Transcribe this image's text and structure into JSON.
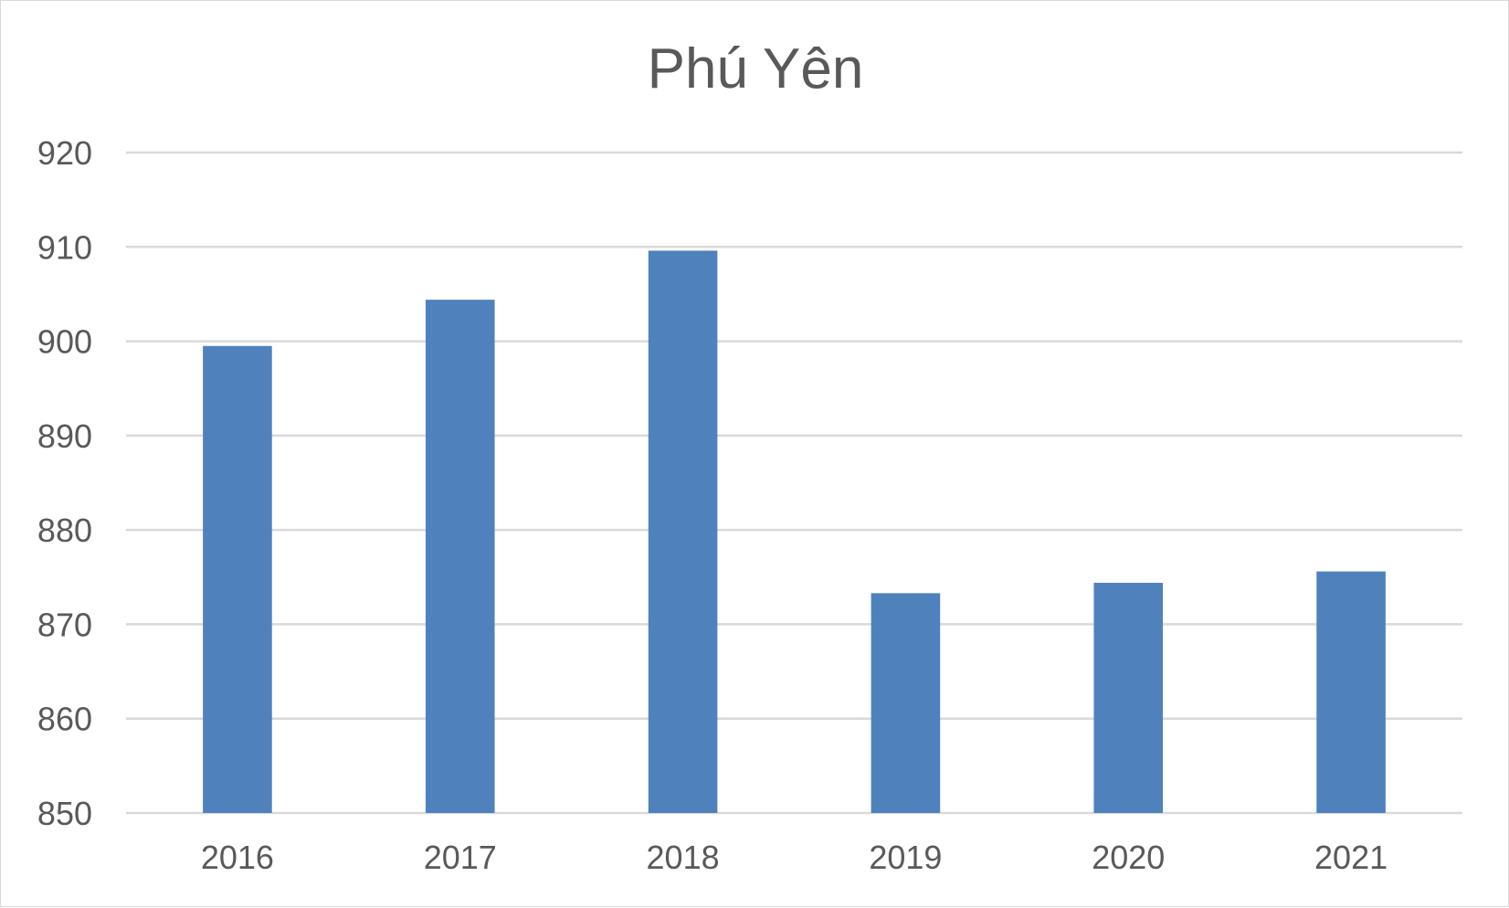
{
  "chart_data": {
    "type": "bar",
    "title": "Phú Yên",
    "categories": [
      "2016",
      "2017",
      "2018",
      "2019",
      "2020",
      "2021"
    ],
    "values": [
      899.5,
      904.4,
      909.6,
      873.3,
      874.4,
      875.6
    ],
    "ylim": [
      850,
      920
    ],
    "yticks": [
      850,
      860,
      870,
      880,
      890,
      900,
      910,
      920
    ],
    "grid": true,
    "legend": "none",
    "colors": {
      "bar": "#4f81bd",
      "grid": "#d9d9d9",
      "text": "#595959"
    }
  }
}
